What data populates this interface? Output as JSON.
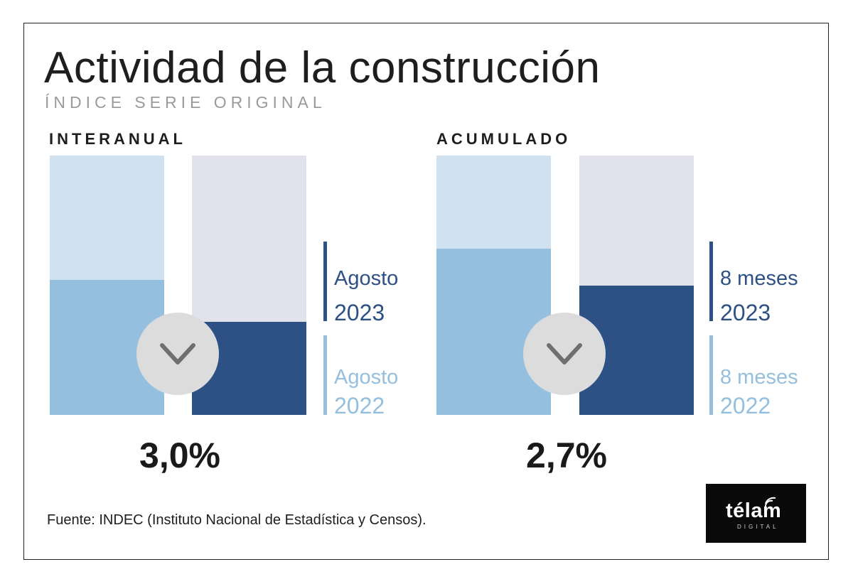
{
  "title": "Actividad de la construcción",
  "subtitle": "ÍNDICE SERIE ORIGINAL",
  "source": "Fuente: INDEC (Instituto Nacional de Estadística y Censos).",
  "logo": {
    "word": "télam",
    "sub": "DIGITAL"
  },
  "colors": {
    "track_light_blue": "#d0e1ef",
    "track_light_gray": "#e1e2ec",
    "fill_2022": "#95bfdf",
    "fill_2023": "#2d5185",
    "badge": "#dcdcdc",
    "chevron": "#6f6f6f"
  },
  "chart_data": [
    {
      "type": "bar",
      "title": "INTERANUAL",
      "categories": [
        "Agosto 2022",
        "Agosto 2023"
      ],
      "values": [
        52,
        36
      ],
      "ylim": [
        0,
        100
      ],
      "change_label": "3,0%",
      "direction": "down",
      "legend": [
        {
          "period": "Agosto",
          "year": "2023"
        },
        {
          "period": "Agosto",
          "year": "2022"
        }
      ]
    },
    {
      "type": "bar",
      "title": "ACUMULADO",
      "categories": [
        "8 meses 2022",
        "8 meses 2023"
      ],
      "values": [
        64,
        50
      ],
      "ylim": [
        0,
        100
      ],
      "change_label": "2,7%",
      "direction": "down",
      "legend": [
        {
          "period": "8 meses",
          "year": "2023"
        },
        {
          "period": "8 meses",
          "year": "2022"
        }
      ]
    }
  ]
}
